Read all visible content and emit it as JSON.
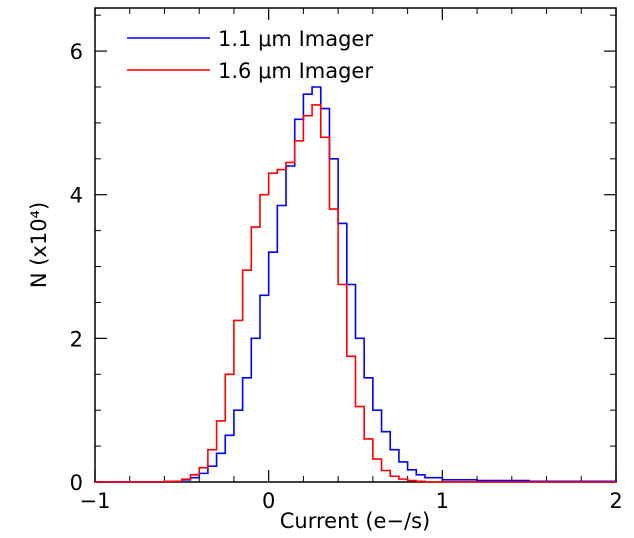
{
  "chart_data": {
    "type": "line",
    "xlabel": "Current (e−/s)",
    "ylabel": "N (x10⁴)",
    "xlim": [
      -1,
      2
    ],
    "ylim": [
      0,
      6.6
    ],
    "grid": false,
    "legend_position": "top-left",
    "x_ticks": [
      {
        "value": -1,
        "label": "−1"
      },
      {
        "value": 0,
        "label": "0"
      },
      {
        "value": 1,
        "label": "1"
      },
      {
        "value": 2,
        "label": "2"
      }
    ],
    "y_ticks": [
      {
        "value": 0,
        "label": "0"
      },
      {
        "value": 2,
        "label": "2"
      },
      {
        "value": 4,
        "label": "4"
      },
      {
        "value": 6,
        "label": "6"
      }
    ],
    "series": [
      {
        "name": "1.1 μm Imager",
        "color": "#0000ff",
        "x": [
          -1.0,
          -0.8,
          -0.6,
          -0.5,
          -0.45,
          -0.4,
          -0.35,
          -0.3,
          -0.25,
          -0.2,
          -0.15,
          -0.1,
          -0.05,
          0.0,
          0.05,
          0.1,
          0.15,
          0.2,
          0.25,
          0.3,
          0.35,
          0.4,
          0.45,
          0.5,
          0.55,
          0.6,
          0.65,
          0.7,
          0.75,
          0.8,
          0.85,
          0.9,
          1.0,
          1.2,
          1.5,
          2.0
        ],
        "y": [
          0.0,
          0.0,
          0.01,
          0.03,
          0.06,
          0.12,
          0.22,
          0.4,
          0.65,
          1.0,
          1.45,
          2.0,
          2.6,
          3.2,
          3.85,
          4.4,
          5.05,
          5.4,
          5.5,
          5.2,
          4.5,
          3.6,
          2.75,
          2.0,
          1.45,
          1.0,
          0.7,
          0.45,
          0.28,
          0.17,
          0.1,
          0.06,
          0.03,
          0.02,
          0.01,
          0.0
        ]
      },
      {
        "name": "1.6 μm Imager",
        "color": "#ff0000",
        "x": [
          -1.0,
          -0.8,
          -0.6,
          -0.5,
          -0.45,
          -0.4,
          -0.35,
          -0.3,
          -0.25,
          -0.2,
          -0.15,
          -0.1,
          -0.05,
          0.0,
          0.05,
          0.1,
          0.15,
          0.2,
          0.25,
          0.3,
          0.35,
          0.4,
          0.45,
          0.5,
          0.55,
          0.6,
          0.65,
          0.7,
          0.75,
          0.8,
          0.85,
          0.9,
          1.0,
          1.2,
          1.5,
          2.0
        ],
        "y": [
          0.0,
          0.0,
          0.01,
          0.04,
          0.1,
          0.2,
          0.45,
          0.85,
          1.5,
          2.25,
          2.95,
          3.55,
          4.0,
          4.3,
          4.35,
          4.45,
          4.75,
          5.1,
          5.25,
          4.8,
          3.8,
          2.75,
          1.75,
          1.05,
          0.6,
          0.32,
          0.16,
          0.08,
          0.04,
          0.02,
          0.01,
          0.0,
          0.0,
          0.0,
          0.0,
          0.0
        ]
      }
    ]
  }
}
